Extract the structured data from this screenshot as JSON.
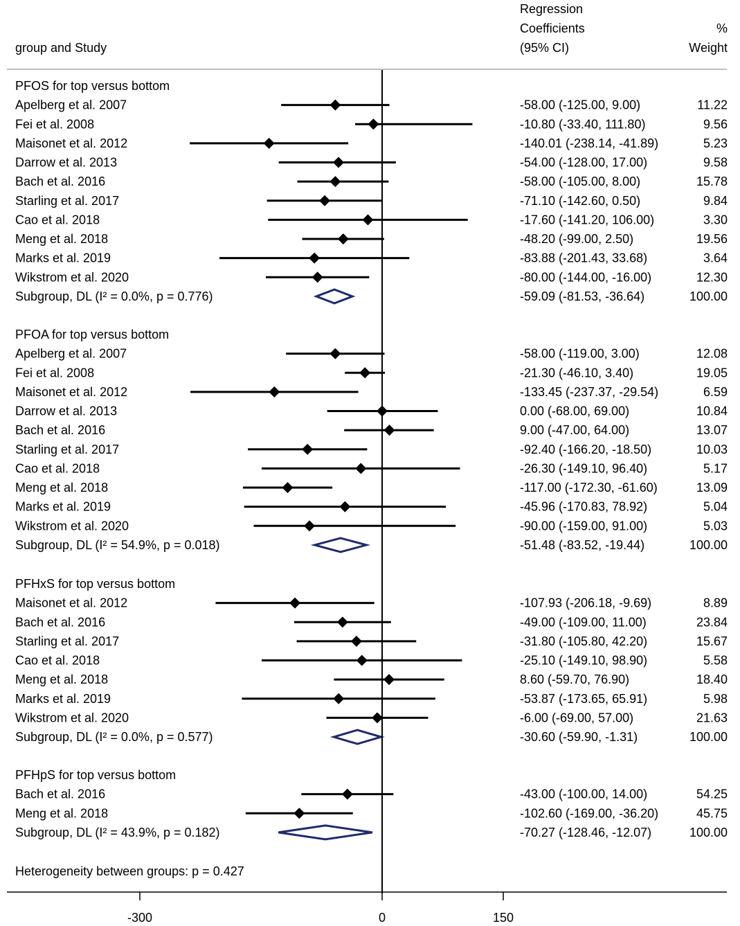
{
  "chart_data": {
    "type": "forest",
    "header": {
      "left": "group and Study",
      "effect_label_lines": [
        "Regression",
        "Coefficients",
        "(95% CI)"
      ],
      "weight_label_lines": [
        "%",
        "Weight"
      ]
    },
    "x_axis": {
      "ticks": [
        -300,
        0,
        150
      ],
      "tick_labels": [
        "-300",
        "0",
        "150"
      ],
      "reference_line": 0
    },
    "groups": [
      {
        "title": "PFOS for top versus bottom",
        "studies": [
          {
            "label": "Apelberg et al. 2007",
            "est": -58.0,
            "lo": -125.0,
            "hi": 9.0,
            "text": "-58.00 (-125.00, 9.00)",
            "weight": "11.22"
          },
          {
            "label": "Fei et al. 2008",
            "est": -10.8,
            "lo": -33.4,
            "hi": 111.8,
            "text": "-10.80 (-33.40, 111.80)",
            "weight": "9.56"
          },
          {
            "label": "Maisonet et al. 2012",
            "est": -140.01,
            "lo": -238.14,
            "hi": -41.89,
            "text": "-140.01 (-238.14, -41.89)",
            "weight": "5.23"
          },
          {
            "label": "Darrow et al. 2013",
            "est": -54.0,
            "lo": -128.0,
            "hi": 17.0,
            "text": "-54.00 (-128.00, 17.00)",
            "weight": "9.58"
          },
          {
            "label": "Bach et al. 2016",
            "est": -58.0,
            "lo": -105.0,
            "hi": 8.0,
            "text": "-58.00 (-105.00, 8.00)",
            "weight": "15.78"
          },
          {
            "label": "Starling et al. 2017",
            "est": -71.1,
            "lo": -142.6,
            "hi": 0.5,
            "text": "-71.10 (-142.60, 0.50)",
            "weight": "9.84"
          },
          {
            "label": "Cao et al. 2018",
            "est": -17.6,
            "lo": -141.2,
            "hi": 106.0,
            "text": "-17.60 (-141.20, 106.00)",
            "weight": "3.30"
          },
          {
            "label": "Meng et al. 2018",
            "est": -48.2,
            "lo": -99.0,
            "hi": 2.5,
            "text": "-48.20 (-99.00, 2.50)",
            "weight": "19.56"
          },
          {
            "label": "Marks et al. 2019",
            "est": -83.88,
            "lo": -201.43,
            "hi": 33.68,
            "text": "-83.88 (-201.43, 33.68)",
            "weight": "3.64"
          },
          {
            "label": "Wikstrom et al. 2020",
            "est": -80.0,
            "lo": -144.0,
            "hi": -16.0,
            "text": "-80.00 (-144.00, -16.00)",
            "weight": "12.30"
          }
        ],
        "subgroup": {
          "label": "Subgroup, DL (I² = 0.0%, p = 0.776)",
          "est": -59.09,
          "lo": -81.53,
          "hi": -36.64,
          "text": "-59.09 (-81.53, -36.64)",
          "weight": "100.00"
        }
      },
      {
        "title": "PFOA for top versus bottom",
        "studies": [
          {
            "label": "Apelberg et al. 2007",
            "est": -58.0,
            "lo": -119.0,
            "hi": 3.0,
            "text": "-58.00 (-119.00, 3.00)",
            "weight": "12.08"
          },
          {
            "label": "Fei et al. 2008",
            "est": -21.3,
            "lo": -46.1,
            "hi": 3.4,
            "text": "-21.30 (-46.10, 3.40)",
            "weight": "19.05"
          },
          {
            "label": "Maisonet et al. 2012",
            "est": -133.45,
            "lo": -237.37,
            "hi": -29.54,
            "text": "-133.45 (-237.37, -29.54)",
            "weight": "6.59"
          },
          {
            "label": "Darrow et al. 2013",
            "est": 0.0,
            "lo": -68.0,
            "hi": 69.0,
            "text": "0.00 (-68.00, 69.00)",
            "weight": "10.84"
          },
          {
            "label": "Bach et al. 2016",
            "est": 9.0,
            "lo": -47.0,
            "hi": 64.0,
            "text": "9.00 (-47.00, 64.00)",
            "weight": "13.07"
          },
          {
            "label": "Starling et al. 2017",
            "est": -92.4,
            "lo": -166.2,
            "hi": -18.5,
            "text": "-92.40 (-166.20, -18.50)",
            "weight": "10.03"
          },
          {
            "label": "Cao et al. 2018",
            "est": -26.3,
            "lo": -149.1,
            "hi": 96.4,
            "text": "-26.30 (-149.10, 96.40)",
            "weight": "5.17"
          },
          {
            "label": "Meng et al. 2018",
            "est": -117.0,
            "lo": -172.3,
            "hi": -61.6,
            "text": "-117.00 (-172.30, -61.60)",
            "weight": "13.09"
          },
          {
            "label": "Marks et al. 2019",
            "est": -45.96,
            "lo": -170.83,
            "hi": 78.92,
            "text": "-45.96 (-170.83, 78.92)",
            "weight": "5.04"
          },
          {
            "label": "Wikstrom et al. 2020",
            "est": -90.0,
            "lo": -159.0,
            "hi": 91.0,
            "text": "-90.00 (-159.00, 91.00)",
            "weight": "5.03"
          }
        ],
        "subgroup": {
          "label": "Subgroup, DL (I² = 54.9%, p = 0.018)",
          "est": -51.48,
          "lo": -83.52,
          "hi": -19.44,
          "text": "-51.48 (-83.52, -19.44)",
          "weight": "100.00"
        }
      },
      {
        "title": "PFHxS for top versus bottom",
        "studies": [
          {
            "label": "Maisonet et al. 2012",
            "est": -107.93,
            "lo": -206.18,
            "hi": -9.69,
            "text": "-107.93 (-206.18, -9.69)",
            "weight": "8.89"
          },
          {
            "label": "Bach et al. 2016",
            "est": -49.0,
            "lo": -109.0,
            "hi": 11.0,
            "text": "-49.00 (-109.00, 11.00)",
            "weight": "23.84"
          },
          {
            "label": "Starling et al. 2017",
            "est": -31.8,
            "lo": -105.8,
            "hi": 42.2,
            "text": "-31.80 (-105.80, 42.20)",
            "weight": "15.67"
          },
          {
            "label": "Cao et al. 2018",
            "est": -25.1,
            "lo": -149.1,
            "hi": 98.9,
            "text": "-25.10 (-149.10, 98.90)",
            "weight": "5.58"
          },
          {
            "label": "Meng et al. 2018",
            "est": 8.6,
            "lo": -59.7,
            "hi": 76.9,
            "text": "8.60 (-59.70, 76.90)",
            "weight": "18.40"
          },
          {
            "label": "Marks et al. 2019",
            "est": -53.87,
            "lo": -173.65,
            "hi": 65.91,
            "text": "-53.87 (-173.65, 65.91)",
            "weight": "5.98"
          },
          {
            "label": "Wikstrom et al. 2020",
            "est": -6.0,
            "lo": -69.0,
            "hi": 57.0,
            "text": "-6.00 (-69.00, 57.00)",
            "weight": "21.63"
          }
        ],
        "subgroup": {
          "label": "Subgroup, DL (I² = 0.0%, p = 0.577)",
          "est": -30.6,
          "lo": -59.9,
          "hi": -1.31,
          "text": "-30.60 (-59.90, -1.31)",
          "weight": "100.00"
        }
      },
      {
        "title": "PFHpS for top versus bottom",
        "studies": [
          {
            "label": "Bach et al. 2016",
            "est": -43.0,
            "lo": -100.0,
            "hi": 14.0,
            "text": "-43.00 (-100.00, 14.00)",
            "weight": "54.25"
          },
          {
            "label": "Meng et al. 2018",
            "est": -102.6,
            "lo": -169.0,
            "hi": -36.2,
            "text": "-102.60 (-169.00, -36.20)",
            "weight": "45.75"
          }
        ],
        "subgroup": {
          "label": "Subgroup, DL (I² = 43.9%, p = 0.182)",
          "est": -70.27,
          "lo": -128.46,
          "hi": -12.07,
          "text": "-70.27 (-128.46, -12.07)",
          "weight": "100.00"
        }
      }
    ],
    "footer": "Heterogeneity between groups: p = 0.427",
    "colors": {
      "marker": "#000000",
      "diamond_stroke": "#1f2a6b",
      "rule": "#bdbdbd"
    }
  }
}
